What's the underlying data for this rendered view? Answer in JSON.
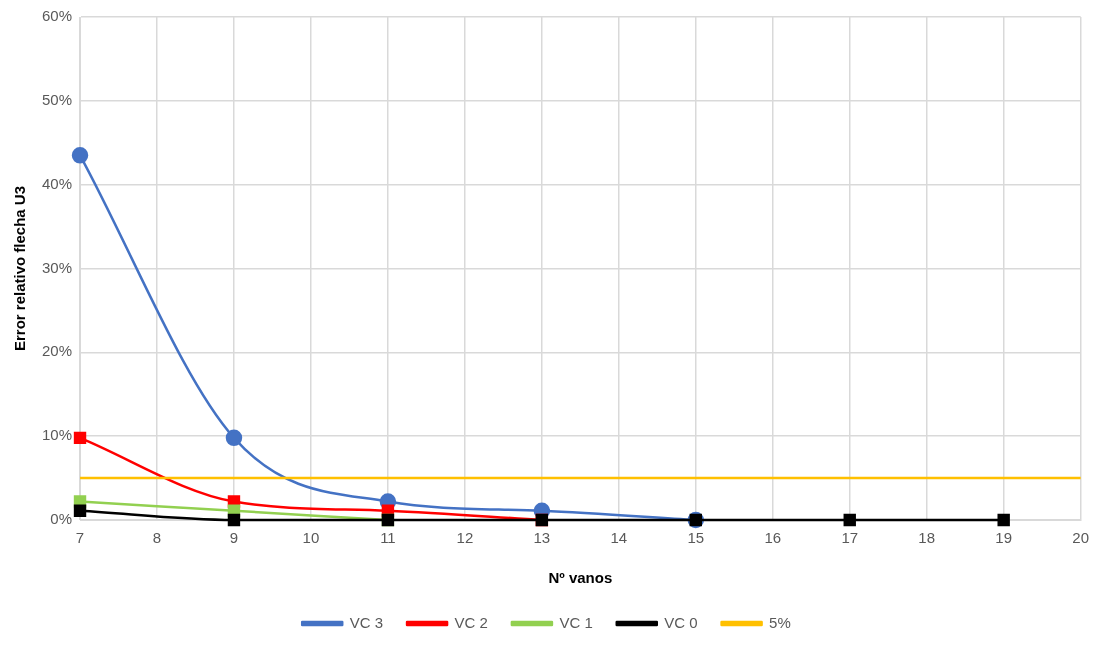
{
  "chart_data": {
    "type": "line",
    "xlabel": "Nº vanos",
    "ylabel": "Error relativo flecha U3",
    "x": [
      7,
      9,
      11,
      13,
      15,
      17,
      19
    ],
    "series": [
      {
        "name": "VC 3",
        "color": "#4472c4",
        "marker": "circle",
        "values": [
          43.5,
          9.8,
          2.2,
          1.1,
          0,
          null,
          null
        ]
      },
      {
        "name": "VC 2",
        "color": "#ff0000",
        "marker": "square",
        "values": [
          9.8,
          2.2,
          1.1,
          0,
          null,
          null,
          null
        ]
      },
      {
        "name": "VC 1",
        "color": "#92d050",
        "marker": "square",
        "values": [
          2.2,
          1.1,
          0,
          null,
          null,
          null,
          null
        ]
      },
      {
        "name": "VC 0",
        "color": "#000000",
        "marker": "square",
        "values": [
          1.1,
          0,
          0,
          0,
          0,
          0,
          0
        ]
      },
      {
        "name": "5%",
        "color": "#ffc000",
        "marker": "none",
        "x": [
          7,
          20
        ],
        "values": [
          5,
          5
        ]
      }
    ],
    "xlim": [
      7,
      20
    ],
    "xticks": [
      7,
      8,
      9,
      10,
      11,
      12,
      13,
      14,
      15,
      16,
      17,
      18,
      19,
      20
    ],
    "ylim": [
      0,
      60
    ],
    "yticks": [
      {
        "value": 0,
        "label": "0%"
      },
      {
        "value": 10,
        "label": "10%"
      },
      {
        "value": 20,
        "label": "20%"
      },
      {
        "value": 30,
        "label": "30%"
      },
      {
        "value": 40,
        "label": "40%"
      },
      {
        "value": 50,
        "label": "50%"
      },
      {
        "value": 60,
        "label": "60%"
      }
    ],
    "grid": true,
    "legend": "bottom"
  }
}
